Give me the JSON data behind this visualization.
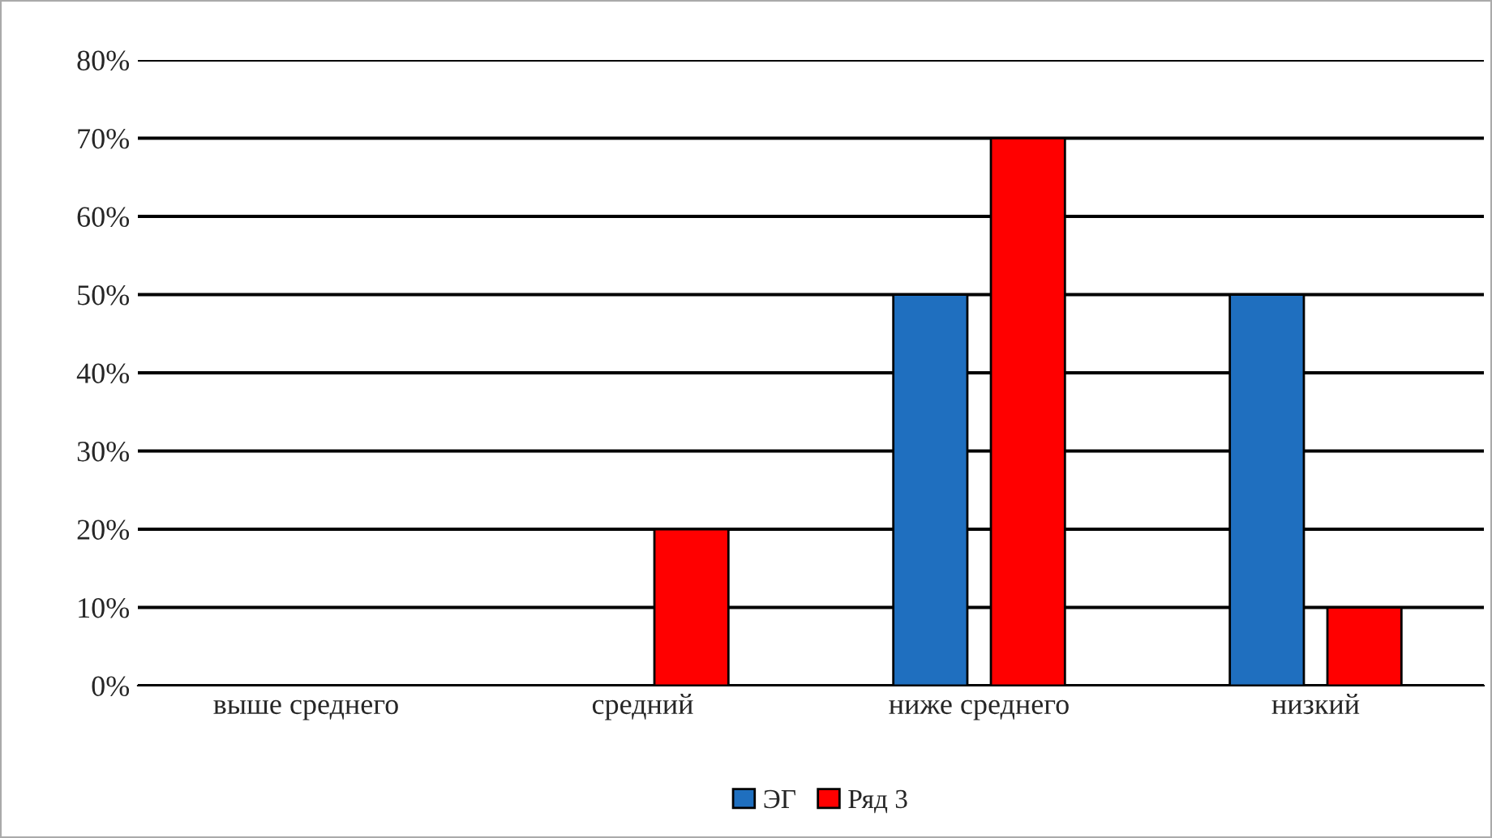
{
  "chart_data": {
    "type": "bar",
    "categories": [
      "выше среднего",
      "средний",
      "ниже среднего",
      "низкий"
    ],
    "series": [
      {
        "name": "ЭГ",
        "color": "#1f6fbf",
        "values": [
          0,
          0,
          50,
          50
        ]
      },
      {
        "name": "Ряд 3",
        "color": "#ff0000",
        "values": [
          0,
          20,
          70,
          10
        ]
      }
    ],
    "ylim": [
      0,
      80
    ],
    "yticks": [
      {
        "value": 0,
        "label": "0%"
      },
      {
        "value": 10,
        "label": "10%"
      },
      {
        "value": 20,
        "label": "20%"
      },
      {
        "value": 30,
        "label": "30%"
      },
      {
        "value": 40,
        "label": "40%"
      },
      {
        "value": 50,
        "label": "50%"
      },
      {
        "value": 60,
        "label": "60%"
      },
      {
        "value": 70,
        "label": "70%"
      },
      {
        "value": 80,
        "label": "80%"
      }
    ],
    "grid": "y",
    "legend": "bottom"
  }
}
